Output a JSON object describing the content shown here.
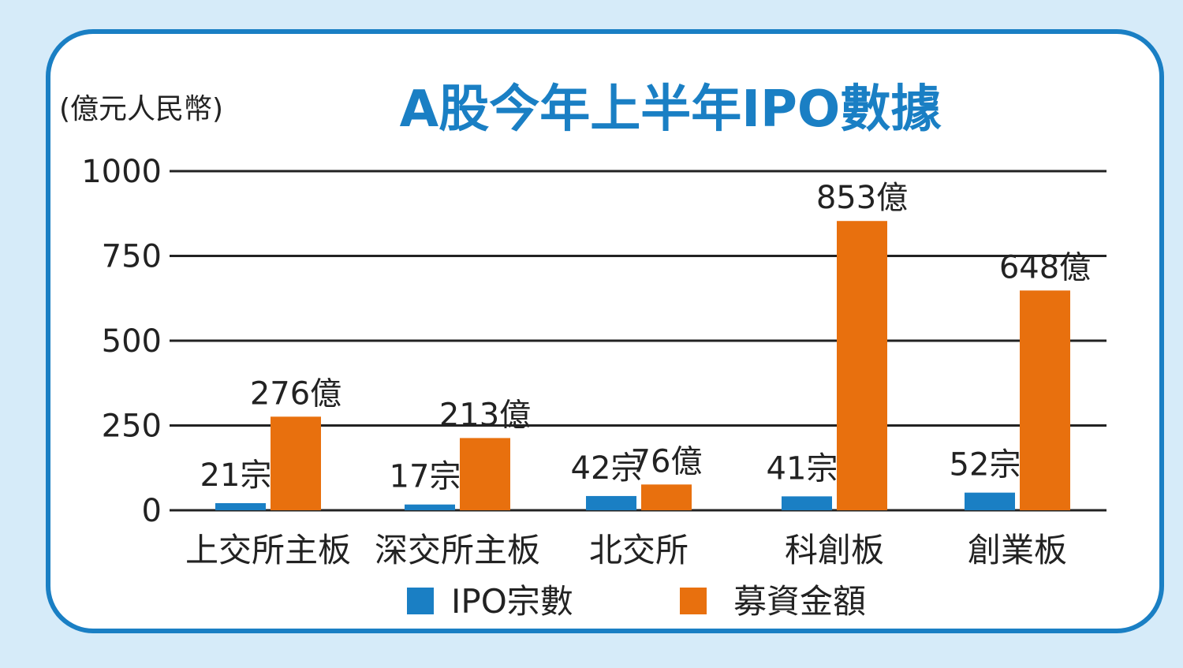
{
  "chart_data": {
    "type": "bar",
    "title": "A股今年上半年IPO數據",
    "unit": "(億元人民幣)",
    "categories": [
      "上交所主板",
      "深交所主板",
      "北交所",
      "科創板",
      "創業板"
    ],
    "series": [
      {
        "name": "IPO宗數",
        "color": "#1a7fc4",
        "values": [
          21,
          17,
          42,
          41,
          52
        ],
        "labels": [
          "21宗",
          "17宗",
          "42宗",
          "41宗",
          "52宗"
        ]
      },
      {
        "name": "募資金額",
        "color": "#e8700e",
        "values": [
          276,
          213,
          76,
          853,
          648
        ],
        "labels": [
          "276億",
          "213億",
          "76億",
          "853億",
          "648億"
        ]
      }
    ],
    "y_ticks": [
      "0",
      "250",
      "500",
      "750",
      "1000"
    ],
    "ylim": [
      0,
      1000
    ],
    "grid": true,
    "legend_position": "bottom"
  }
}
